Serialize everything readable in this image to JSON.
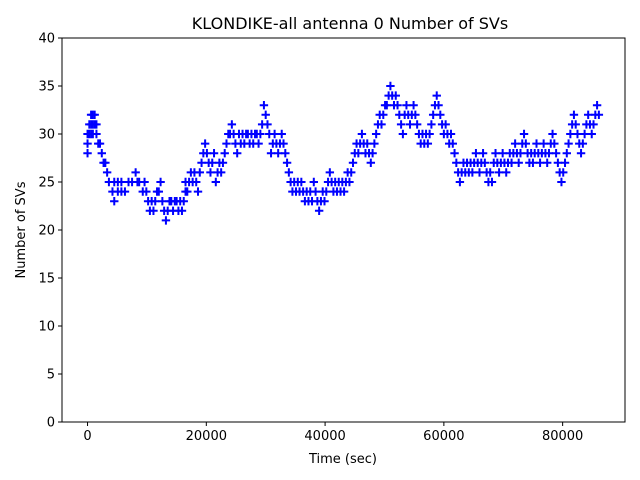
{
  "chart_data": {
    "type": "scatter",
    "title": "KLONDIKE-all antenna 0 Number of SVs",
    "xlabel": "Time (sec)",
    "ylabel": "Number of SVs",
    "xlim": [
      -4300,
      90500
    ],
    "ylim": [
      0,
      40
    ],
    "xticks": [
      0,
      20000,
      40000,
      60000,
      80000
    ],
    "xtick_labels": [
      "0",
      "20000",
      "40000",
      "60000",
      "80000"
    ],
    "yticks": [
      0,
      5,
      10,
      15,
      20,
      25,
      30,
      35,
      40
    ],
    "ytick_labels": [
      "0",
      "5",
      "10",
      "15",
      "20",
      "25",
      "30",
      "35",
      "40"
    ],
    "grid": false,
    "marker": "plus",
    "color": "#0000ff",
    "series": [
      {
        "name": "antenna 0",
        "points": [
          [
            0,
            28
          ],
          [
            0,
            29
          ],
          [
            0,
            30
          ],
          [
            300,
            30
          ],
          [
            300,
            31
          ],
          [
            600,
            30
          ],
          [
            600,
            31
          ],
          [
            600,
            32
          ],
          [
            900,
            30
          ],
          [
            900,
            31
          ],
          [
            900,
            32
          ],
          [
            1200,
            31
          ],
          [
            1200,
            32
          ],
          [
            1500,
            30
          ],
          [
            1500,
            31
          ],
          [
            1800,
            29
          ],
          [
            2100,
            29
          ],
          [
            2400,
            28
          ],
          [
            2700,
            27
          ],
          [
            3000,
            27
          ],
          [
            3300,
            26
          ],
          [
            3600,
            25
          ],
          [
            4200,
            24
          ],
          [
            4500,
            23
          ],
          [
            4500,
            25
          ],
          [
            5100,
            24
          ],
          [
            5100,
            25
          ],
          [
            5700,
            24
          ],
          [
            5700,
            25
          ],
          [
            6300,
            24
          ],
          [
            6900,
            25
          ],
          [
            7500,
            25
          ],
          [
            8100,
            26
          ],
          [
            8400,
            25
          ],
          [
            8700,
            25
          ],
          [
            9300,
            24
          ],
          [
            9600,
            25
          ],
          [
            9900,
            24
          ],
          [
            10200,
            23
          ],
          [
            10500,
            22
          ],
          [
            10800,
            23
          ],
          [
            11100,
            22
          ],
          [
            11400,
            23
          ],
          [
            11700,
            24
          ],
          [
            12000,
            24
          ],
          [
            12300,
            25
          ],
          [
            12600,
            23
          ],
          [
            12900,
            22
          ],
          [
            13200,
            21
          ],
          [
            13500,
            22
          ],
          [
            13800,
            23
          ],
          [
            14100,
            23
          ],
          [
            14400,
            22
          ],
          [
            14700,
            23
          ],
          [
            15000,
            23
          ],
          [
            15300,
            22
          ],
          [
            15600,
            23
          ],
          [
            15900,
            22
          ],
          [
            16200,
            23
          ],
          [
            16500,
            24
          ],
          [
            16500,
            25
          ],
          [
            16800,
            24
          ],
          [
            17100,
            25
          ],
          [
            17400,
            26
          ],
          [
            17700,
            25
          ],
          [
            18000,
            26
          ],
          [
            18300,
            25
          ],
          [
            18600,
            24
          ],
          [
            18900,
            26
          ],
          [
            19200,
            27
          ],
          [
            19500,
            28
          ],
          [
            19800,
            29
          ],
          [
            20100,
            28
          ],
          [
            20400,
            27
          ],
          [
            20700,
            26
          ],
          [
            21000,
            27
          ],
          [
            21300,
            28
          ],
          [
            21600,
            25
          ],
          [
            21900,
            26
          ],
          [
            22200,
            27
          ],
          [
            22500,
            26
          ],
          [
            22800,
            27
          ],
          [
            23100,
            28
          ],
          [
            23400,
            29
          ],
          [
            23700,
            30
          ],
          [
            24000,
            30
          ],
          [
            24300,
            31
          ],
          [
            24600,
            30
          ],
          [
            24900,
            29
          ],
          [
            25200,
            28
          ],
          [
            25500,
            30
          ],
          [
            25800,
            29
          ],
          [
            26100,
            30
          ],
          [
            26400,
            29
          ],
          [
            26700,
            30
          ],
          [
            27000,
            30
          ],
          [
            27300,
            29
          ],
          [
            27600,
            30
          ],
          [
            27900,
            29
          ],
          [
            28200,
            30
          ],
          [
            28500,
            30
          ],
          [
            28800,
            29
          ],
          [
            29100,
            30
          ],
          [
            29400,
            31
          ],
          [
            29700,
            33
          ],
          [
            30000,
            32
          ],
          [
            30300,
            31
          ],
          [
            30600,
            30
          ],
          [
            30900,
            28
          ],
          [
            31200,
            29
          ],
          [
            31500,
            30
          ],
          [
            31800,
            29
          ],
          [
            32100,
            28
          ],
          [
            32400,
            29
          ],
          [
            32700,
            30
          ],
          [
            33000,
            29
          ],
          [
            33300,
            28
          ],
          [
            33600,
            27
          ],
          [
            33900,
            26
          ],
          [
            34200,
            25
          ],
          [
            34500,
            24
          ],
          [
            34800,
            25
          ],
          [
            35100,
            24
          ],
          [
            35400,
            25
          ],
          [
            35700,
            24
          ],
          [
            36000,
            25
          ],
          [
            36300,
            24
          ],
          [
            36600,
            23
          ],
          [
            36900,
            24
          ],
          [
            37200,
            23
          ],
          [
            37500,
            24
          ],
          [
            37800,
            23
          ],
          [
            38100,
            25
          ],
          [
            38400,
            24
          ],
          [
            38700,
            23
          ],
          [
            39000,
            22
          ],
          [
            39300,
            23
          ],
          [
            39600,
            24
          ],
          [
            39900,
            23
          ],
          [
            40200,
            24
          ],
          [
            40500,
            25
          ],
          [
            40800,
            26
          ],
          [
            41100,
            25
          ],
          [
            41400,
            24
          ],
          [
            41700,
            25
          ],
          [
            42000,
            24
          ],
          [
            42300,
            25
          ],
          [
            42600,
            24
          ],
          [
            42900,
            25
          ],
          [
            43200,
            24
          ],
          [
            43500,
            25
          ],
          [
            43800,
            26
          ],
          [
            44100,
            25
          ],
          [
            44400,
            26
          ],
          [
            44700,
            27
          ],
          [
            45000,
            28
          ],
          [
            45300,
            29
          ],
          [
            45600,
            28
          ],
          [
            45900,
            29
          ],
          [
            46200,
            30
          ],
          [
            46500,
            29
          ],
          [
            46800,
            28
          ],
          [
            47100,
            29
          ],
          [
            47400,
            28
          ],
          [
            47700,
            27
          ],
          [
            48000,
            28
          ],
          [
            48300,
            29
          ],
          [
            48600,
            30
          ],
          [
            48900,
            31
          ],
          [
            49200,
            32
          ],
          [
            49500,
            31
          ],
          [
            49800,
            32
          ],
          [
            50100,
            33
          ],
          [
            50400,
            33
          ],
          [
            50700,
            34
          ],
          [
            51000,
            35
          ],
          [
            51300,
            34
          ],
          [
            51600,
            33
          ],
          [
            51900,
            34
          ],
          [
            52200,
            33
          ],
          [
            52500,
            32
          ],
          [
            52800,
            31
          ],
          [
            53100,
            30
          ],
          [
            53400,
            32
          ],
          [
            53700,
            33
          ],
          [
            54000,
            32
          ],
          [
            54300,
            31
          ],
          [
            54600,
            32
          ],
          [
            54900,
            33
          ],
          [
            55200,
            32
          ],
          [
            55500,
            31
          ],
          [
            55800,
            30
          ],
          [
            56100,
            29
          ],
          [
            56400,
            30
          ],
          [
            56700,
            29
          ],
          [
            57000,
            30
          ],
          [
            57300,
            29
          ],
          [
            57600,
            30
          ],
          [
            57900,
            31
          ],
          [
            58200,
            32
          ],
          [
            58500,
            33
          ],
          [
            58800,
            34
          ],
          [
            59100,
            33
          ],
          [
            59400,
            32
          ],
          [
            59700,
            31
          ],
          [
            60000,
            30
          ],
          [
            60300,
            31
          ],
          [
            60600,
            30
          ],
          [
            60900,
            29
          ],
          [
            61200,
            30
          ],
          [
            61500,
            29
          ],
          [
            61800,
            28
          ],
          [
            62100,
            27
          ],
          [
            62400,
            26
          ],
          [
            62700,
            25
          ],
          [
            63000,
            26
          ],
          [
            63300,
            27
          ],
          [
            63600,
            26
          ],
          [
            63900,
            27
          ],
          [
            64200,
            26
          ],
          [
            64500,
            27
          ],
          [
            64800,
            26
          ],
          [
            65100,
            27
          ],
          [
            65400,
            28
          ],
          [
            65700,
            27
          ],
          [
            66000,
            26
          ],
          [
            66300,
            27
          ],
          [
            66600,
            28
          ],
          [
            66900,
            27
          ],
          [
            67200,
            26
          ],
          [
            67500,
            25
          ],
          [
            67800,
            26
          ],
          [
            68100,
            25
          ],
          [
            68400,
            27
          ],
          [
            68700,
            28
          ],
          [
            69000,
            27
          ],
          [
            69300,
            26
          ],
          [
            69600,
            27
          ],
          [
            69900,
            28
          ],
          [
            70200,
            27
          ],
          [
            70500,
            26
          ],
          [
            70800,
            27
          ],
          [
            71100,
            28
          ],
          [
            71400,
            27
          ],
          [
            71700,
            28
          ],
          [
            72000,
            29
          ],
          [
            72300,
            28
          ],
          [
            72600,
            27
          ],
          [
            72900,
            28
          ],
          [
            73200,
            29
          ],
          [
            73500,
            30
          ],
          [
            73800,
            29
          ],
          [
            74100,
            28
          ],
          [
            74400,
            27
          ],
          [
            74700,
            28
          ],
          [
            75000,
            27
          ],
          [
            75300,
            28
          ],
          [
            75600,
            29
          ],
          [
            75900,
            28
          ],
          [
            76200,
            27
          ],
          [
            76500,
            28
          ],
          [
            76800,
            29
          ],
          [
            77100,
            28
          ],
          [
            77400,
            27
          ],
          [
            77700,
            28
          ],
          [
            78000,
            29
          ],
          [
            78300,
            30
          ],
          [
            78600,
            29
          ],
          [
            78900,
            28
          ],
          [
            79200,
            27
          ],
          [
            79500,
            26
          ],
          [
            79800,
            25
          ],
          [
            80100,
            26
          ],
          [
            80400,
            27
          ],
          [
            80700,
            28
          ],
          [
            81000,
            29
          ],
          [
            81300,
            30
          ],
          [
            81600,
            31
          ],
          [
            81900,
            32
          ],
          [
            82200,
            31
          ],
          [
            82500,
            30
          ],
          [
            82800,
            29
          ],
          [
            83100,
            28
          ],
          [
            83400,
            29
          ],
          [
            83700,
            30
          ],
          [
            84000,
            31
          ],
          [
            84300,
            32
          ],
          [
            84600,
            31
          ],
          [
            84900,
            30
          ],
          [
            85200,
            31
          ],
          [
            85500,
            32
          ],
          [
            85800,
            33
          ],
          [
            86100,
            32
          ]
        ]
      }
    ]
  }
}
